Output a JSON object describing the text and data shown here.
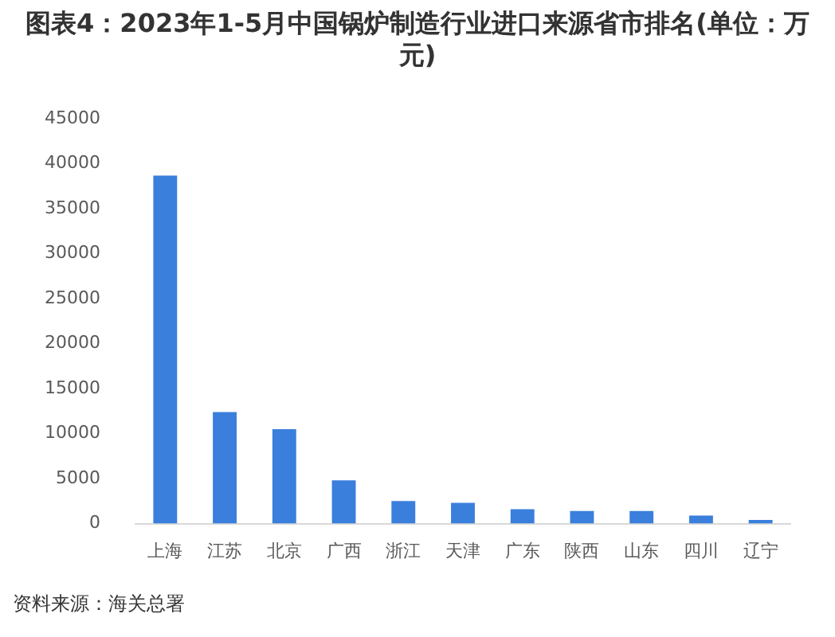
{
  "chart_data": {
    "type": "bar",
    "title": "图表4：2023年1-5月中国锅炉制造行业进口来源省市排名(单位：万元)",
    "categories": [
      "上海",
      "江苏",
      "北京",
      "广西",
      "浙江",
      "天津",
      "广东",
      "陕西",
      "山东",
      "四川",
      "辽宁"
    ],
    "values": [
      38700,
      12400,
      10500,
      4800,
      2500,
      2300,
      1600,
      1400,
      1400,
      900,
      400
    ],
    "color": "#3a7fdc",
    "ylim": [
      0,
      45000
    ],
    "yticks": [
      0,
      5000,
      10000,
      15000,
      20000,
      25000,
      30000,
      35000,
      40000,
      45000
    ],
    "grid": false,
    "legend": false,
    "annotations": [
      "资料来源：海关总署"
    ]
  }
}
